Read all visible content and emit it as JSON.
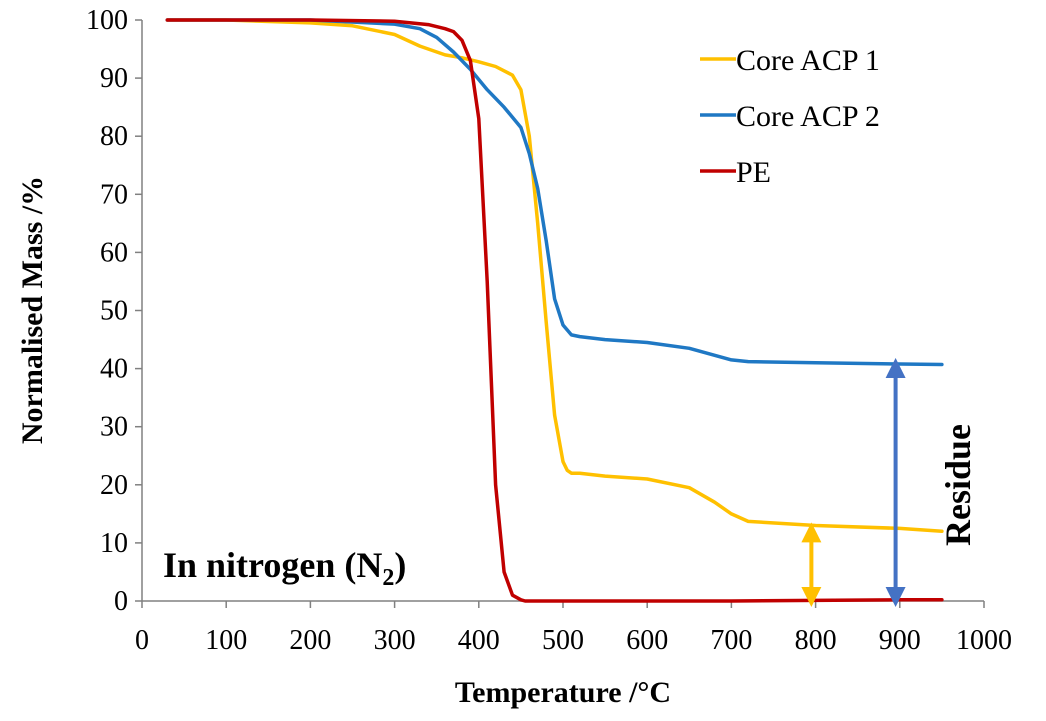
{
  "chart_data": {
    "type": "line",
    "title": "",
    "xlabel": "Temperature /°C",
    "ylabel": "Normalised Mass /%",
    "xlim": [
      0,
      1000
    ],
    "ylim": [
      0,
      100
    ],
    "x_ticks": [
      "0",
      "100",
      "200",
      "300",
      "400",
      "500",
      "600",
      "700",
      "800",
      "900",
      "1000"
    ],
    "y_ticks": [
      "0",
      "10",
      "20",
      "30",
      "40",
      "50",
      "60",
      "70",
      "80",
      "90",
      "100"
    ],
    "grid": false,
    "legend_position": "top-right",
    "series": [
      {
        "name": "Core ACP 1",
        "color": "#FFC000",
        "x": [
          30,
          100,
          200,
          250,
          300,
          330,
          360,
          380,
          400,
          420,
          440,
          450,
          460,
          470,
          480,
          490,
          500,
          505,
          510,
          520,
          550,
          600,
          650,
          680,
          700,
          720,
          800,
          900,
          950
        ],
        "y": [
          100,
          100,
          99.5,
          99,
          97.5,
          95.5,
          94,
          93.5,
          92.8,
          92,
          90.5,
          88,
          80,
          65,
          48,
          32,
          24,
          22.5,
          22,
          22,
          21.5,
          21,
          19.5,
          17,
          15,
          13.7,
          13,
          12.5,
          12
        ]
      },
      {
        "name": "Core ACP 2",
        "color": "#1F78C4",
        "x": [
          30,
          100,
          200,
          300,
          330,
          350,
          370,
          390,
          410,
          430,
          450,
          460,
          470,
          480,
          490,
          500,
          510,
          520,
          550,
          600,
          650,
          700,
          720,
          800,
          900,
          950
        ],
        "y": [
          100,
          100,
          100,
          99.3,
          98.5,
          97,
          94.5,
          91.5,
          88,
          85,
          81.5,
          77,
          71,
          62,
          52,
          47.5,
          45.8,
          45.5,
          45,
          44.5,
          43.5,
          41.5,
          41.2,
          41,
          40.8,
          40.7
        ]
      },
      {
        "name": "PE",
        "color": "#C00000",
        "x": [
          30,
          100,
          200,
          300,
          340,
          360,
          370,
          380,
          390,
          400,
          410,
          420,
          430,
          440,
          450,
          455,
          460,
          500,
          600,
          700,
          800,
          900,
          950
        ],
        "y": [
          100,
          100,
          100,
          99.8,
          99.2,
          98.5,
          98,
          96.5,
          93,
          83,
          55,
          20,
          5,
          1,
          0.2,
          0,
          0,
          0,
          0,
          0,
          0.1,
          0.2,
          0.2
        ]
      }
    ],
    "annotations": {
      "condition_label": "In nitrogen (N",
      "condition_subscript": "2",
      "condition_close": ")",
      "residue_label": "Residue",
      "arrows": [
        {
          "series": "Core ACP 1",
          "x": 795,
          "y_from": 0,
          "y_to": 12.5,
          "color": "#FFC000"
        },
        {
          "series": "Core ACP 2",
          "x": 895,
          "y_from": 0,
          "y_to": 40.8,
          "color": "#4472C4"
        }
      ]
    }
  }
}
